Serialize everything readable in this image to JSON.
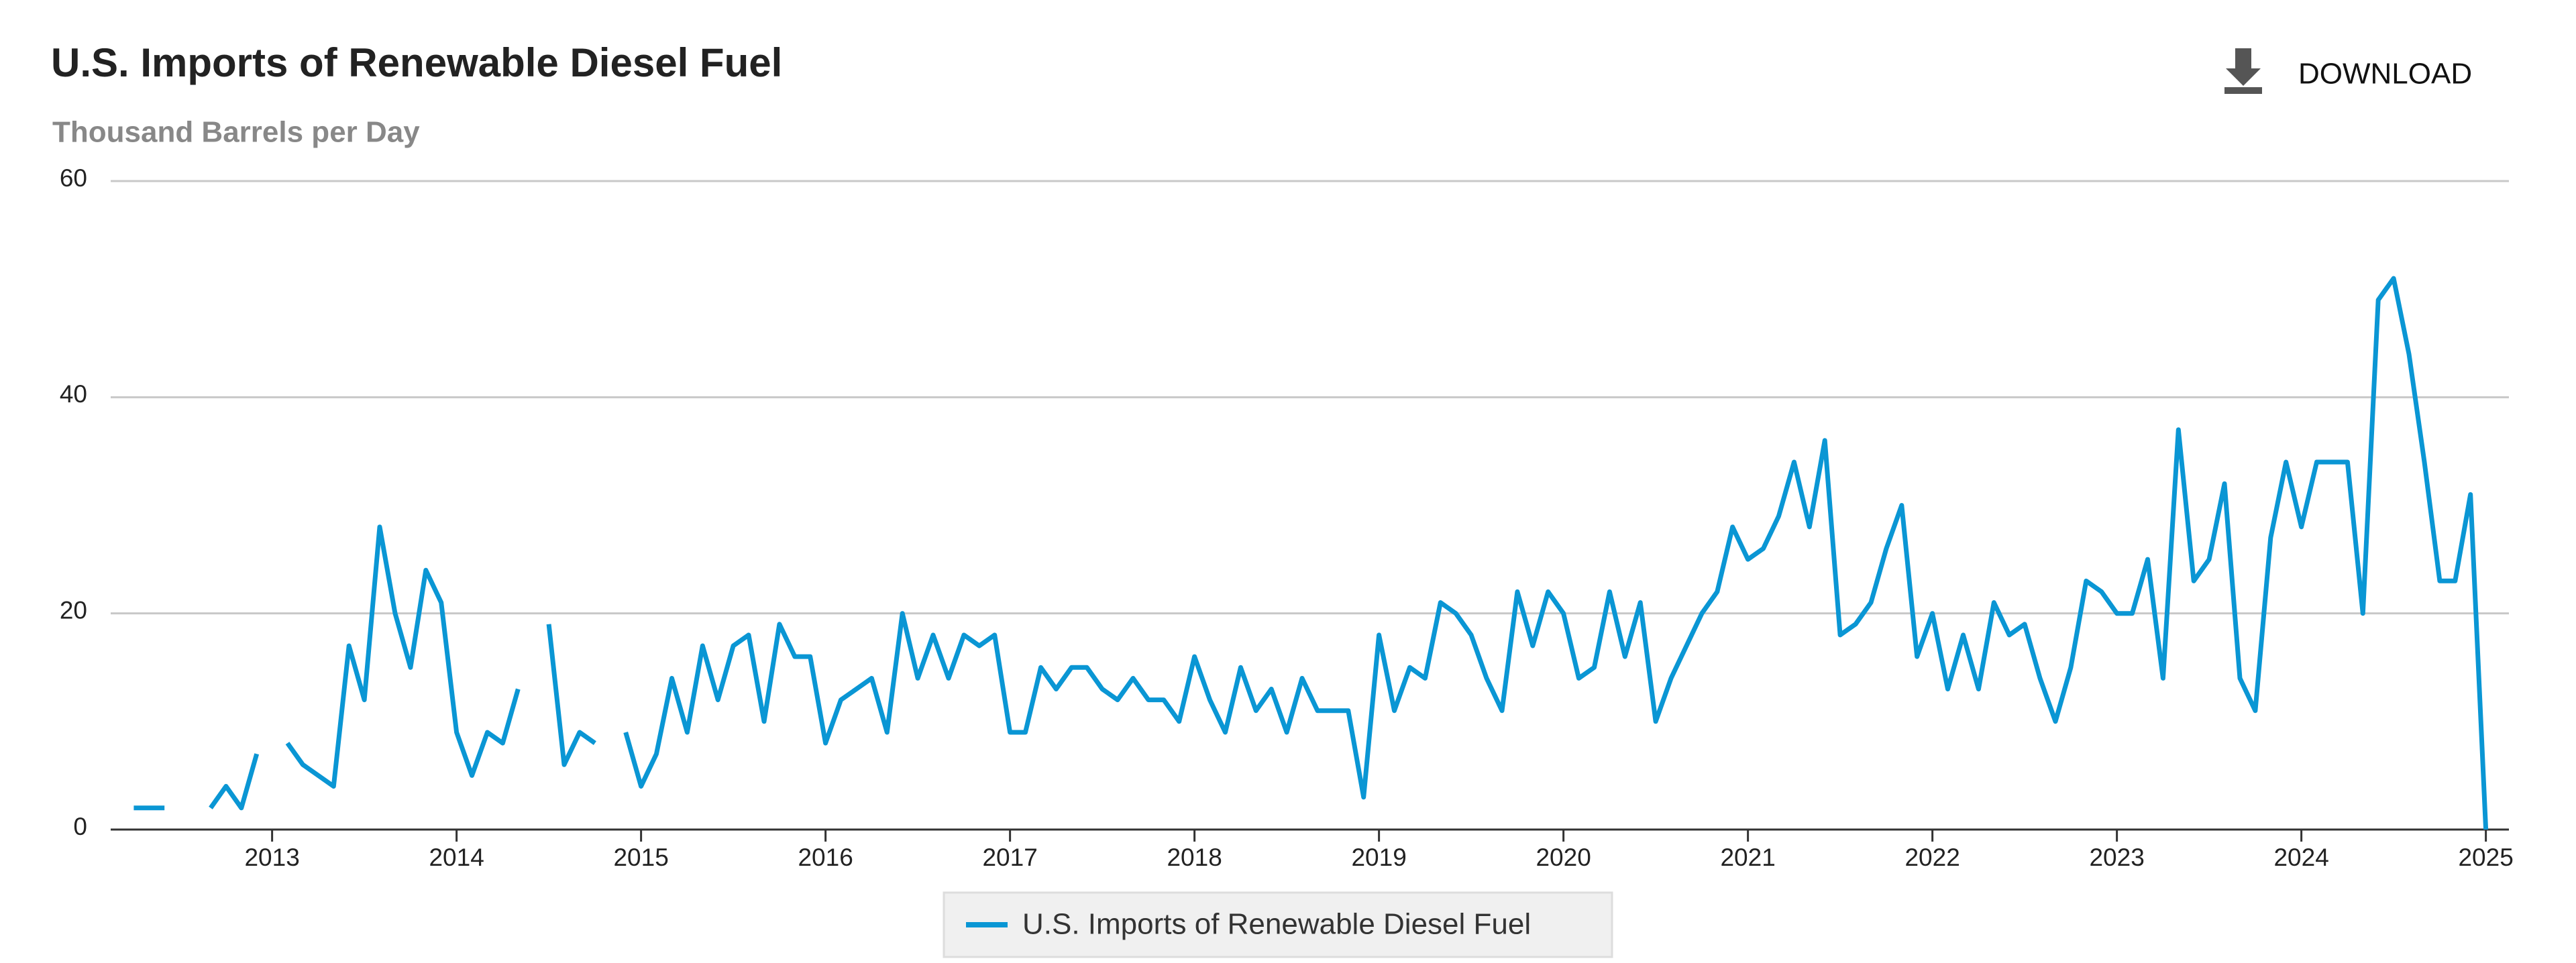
{
  "chart_data": {
    "type": "line",
    "title": "U.S. Imports of Renewable Diesel Fuel",
    "subtitle": "Thousand Barrels per Day",
    "download_label": "DOWNLOAD",
    "x": [
      2012.25,
      2012.3333,
      2012.4167,
      2012.5,
      2012.5833,
      2012.6667,
      2012.75,
      2012.8333,
      2012.9167,
      2013,
      2013.0833,
      2013.1667,
      2013.25,
      2013.3333,
      2013.4167,
      2013.5,
      2013.5833,
      2013.6667,
      2013.75,
      2013.8333,
      2013.9167,
      2014,
      2014.0833,
      2014.1667,
      2014.25,
      2014.3333,
      2014.4167,
      2014.5,
      2014.5833,
      2014.6667,
      2014.75,
      2014.8333,
      2014.9167,
      2015,
      2015.0833,
      2015.1667,
      2015.25,
      2015.3333,
      2015.4167,
      2015.5,
      2015.5833,
      2015.6667,
      2015.75,
      2015.8333,
      2015.9167,
      2016,
      2016.0833,
      2016.1667,
      2016.25,
      2016.3333,
      2016.4167,
      2016.5,
      2016.5833,
      2016.6667,
      2016.75,
      2016.8333,
      2016.9167,
      2017,
      2017.0833,
      2017.1667,
      2017.25,
      2017.3333,
      2017.4167,
      2017.5,
      2017.5833,
      2017.6667,
      2017.75,
      2017.8333,
      2017.9167,
      2018,
      2018.0833,
      2018.1667,
      2018.25,
      2018.3333,
      2018.4167,
      2018.5,
      2018.5833,
      2018.6667,
      2018.75,
      2018.8333,
      2018.9167,
      2019,
      2019.0833,
      2019.1667,
      2019.25,
      2019.3333,
      2019.4167,
      2019.5,
      2019.5833,
      2019.6667,
      2019.75,
      2019.8333,
      2019.9167,
      2020,
      2020.0833,
      2020.1667,
      2020.25,
      2020.3333,
      2020.4167,
      2020.5,
      2020.5833,
      2020.6667,
      2020.75,
      2020.8333,
      2020.9167,
      2021,
      2021.0833,
      2021.1667,
      2021.25,
      2021.3333,
      2021.4167,
      2021.5,
      2021.5833,
      2021.6667,
      2021.75,
      2021.8333,
      2021.9167,
      2022,
      2022.0833,
      2022.1667,
      2022.25,
      2022.3333,
      2022.4167,
      2022.5,
      2022.5833,
      2022.6667,
      2022.75,
      2022.8333,
      2022.9167,
      2023,
      2023.0833,
      2023.1667,
      2023.25,
      2023.3333,
      2023.4167,
      2023.5,
      2023.5833,
      2023.6667,
      2023.75,
      2023.8333,
      2023.9167,
      2024,
      2024.0833,
      2024.1667,
      2024.25,
      2024.3333,
      2024.4167,
      2024.5,
      2024.5833,
      2024.6667,
      2024.75,
      2024.8333,
      2024.9167,
      2025
    ],
    "series": [
      {
        "name": "U.S. Imports of Renewable Diesel Fuel",
        "color": "#0a96d4",
        "values": [
          2,
          2,
          2,
          null,
          null,
          2,
          4,
          2,
          7,
          null,
          8,
          6,
          5,
          4,
          17,
          12,
          28,
          20,
          15,
          24,
          21,
          9,
          5,
          9,
          8,
          13,
          null,
          19,
          6,
          9,
          8,
          null,
          9,
          4,
          7,
          14,
          9,
          17,
          12,
          17,
          18,
          10,
          19,
          16,
          16,
          8,
          12,
          13,
          14,
          9,
          20,
          14,
          18,
          14,
          18,
          17,
          18,
          9,
          9,
          15,
          13,
          15,
          15,
          13,
          12,
          14,
          12,
          12,
          10,
          16,
          12,
          9,
          15,
          11,
          13,
          9,
          14,
          11,
          11,
          11,
          3,
          18,
          11,
          15,
          14,
          21,
          20,
          18,
          14,
          11,
          22,
          17,
          22,
          20,
          14,
          15,
          22,
          16,
          21,
          10,
          14,
          17,
          20,
          22,
          28,
          25,
          26,
          29,
          34,
          28,
          36,
          18,
          19,
          21,
          26,
          30,
          16,
          20,
          13,
          18,
          13,
          21,
          18,
          19,
          14,
          10,
          15,
          23,
          22,
          20,
          20,
          25,
          14,
          37,
          23,
          25,
          32,
          14,
          11,
          27,
          34,
          28,
          34,
          34,
          34,
          20,
          49,
          51,
          44,
          34,
          23,
          23,
          31,
          0
        ]
      }
    ],
    "xlim": [
      2012.125,
      2025.125
    ],
    "xticks": [
      2013,
      2014,
      2015,
      2016,
      2017,
      2018,
      2019,
      2020,
      2021,
      2022,
      2023,
      2024,
      2025
    ],
    "ylim": [
      0,
      60
    ],
    "yticks": [
      0,
      20,
      40,
      60
    ],
    "grid": true
  }
}
